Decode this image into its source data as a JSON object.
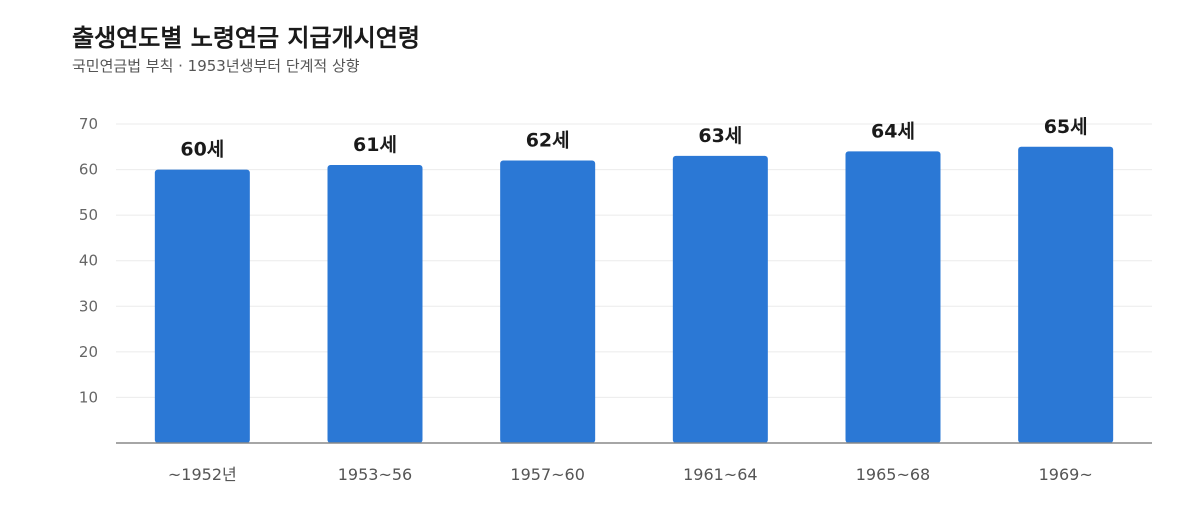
{
  "title": "출생연도별 노령연금 지급개시연령",
  "subtitle": "국민연금법 부칙 · 1953년생부터 단계적 상향",
  "colors": {
    "bar": "#2b78d5",
    "grid": "#ebebeb",
    "axis": "#888888"
  },
  "chart_data": {
    "type": "bar",
    "categories": [
      "~1952년",
      "1953~56",
      "1957~60",
      "1961~64",
      "1965~68",
      "1969~"
    ],
    "values": [
      60,
      61,
      62,
      63,
      64,
      65
    ],
    "data_labels": [
      "60세",
      "61세",
      "62세",
      "63세",
      "64세",
      "65세"
    ],
    "ylim": [
      0,
      70
    ],
    "yticks": [
      10,
      20,
      30,
      40,
      50,
      60,
      70
    ],
    "grid": true,
    "legend": "none"
  }
}
